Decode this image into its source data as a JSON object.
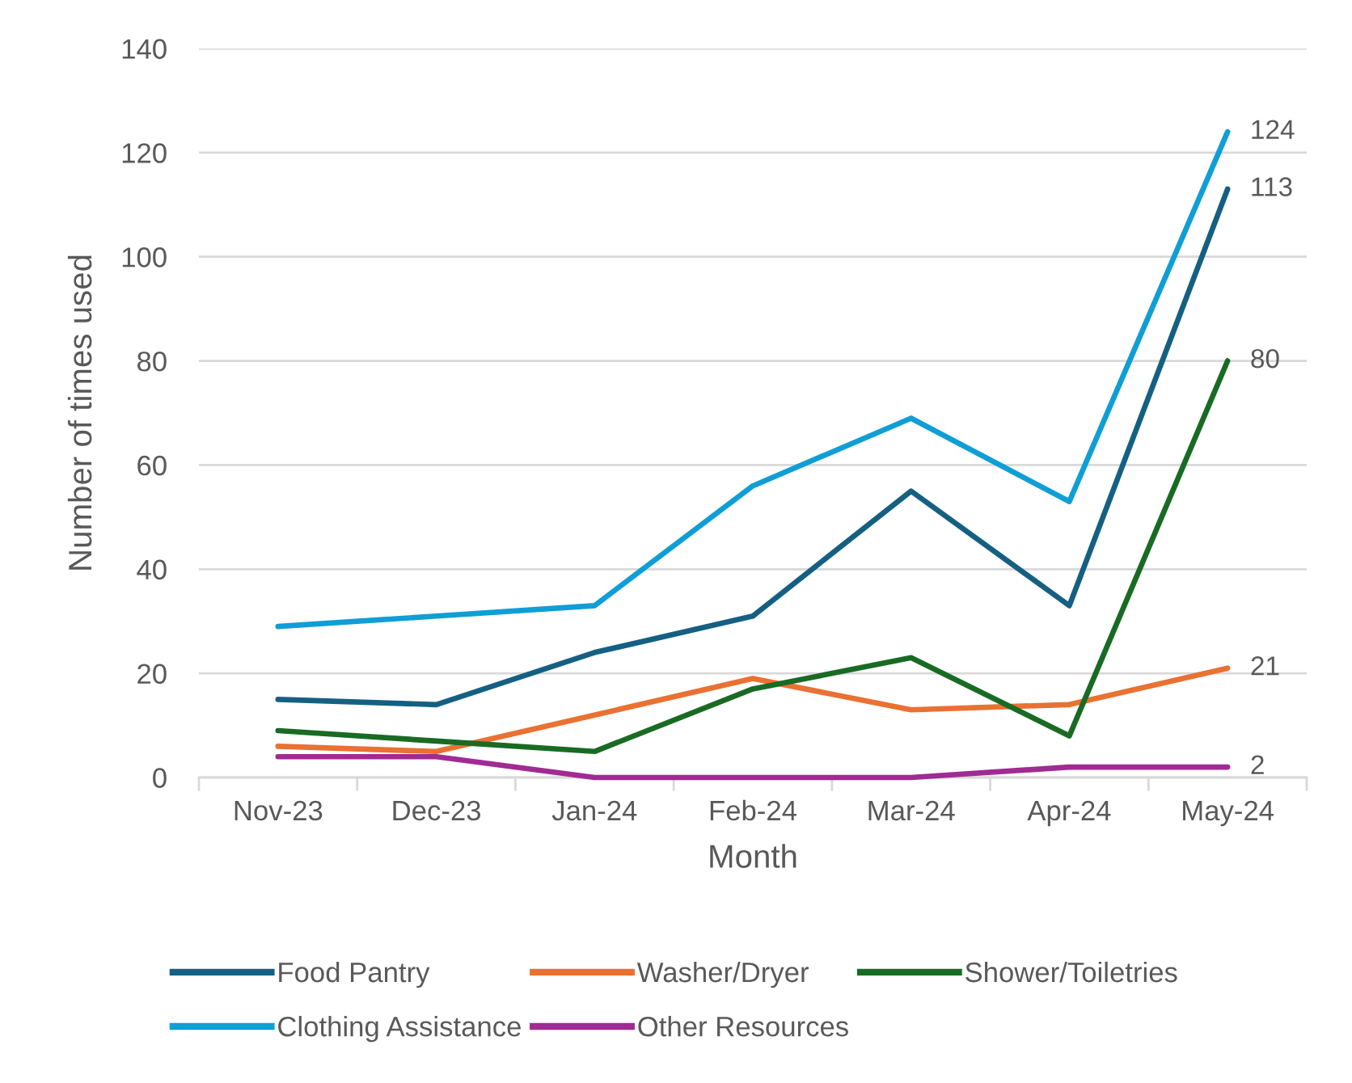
{
  "chart_data": {
    "type": "line",
    "xlabel": "Month",
    "ylabel": "Number of times used",
    "categories": [
      "Nov-23",
      "Dec-23",
      "Jan-24",
      "Feb-24",
      "Mar-24",
      "Apr-24",
      "May-24"
    ],
    "series": [
      {
        "name": "Food Pantry",
        "color": "#156082",
        "values": [
          15,
          14,
          24,
          31,
          55,
          33,
          113
        ],
        "value_labels": [
          null,
          null,
          null,
          null,
          null,
          null,
          "113"
        ]
      },
      {
        "name": "Washer/Dryer",
        "color": "#e97132",
        "values": [
          6,
          5,
          12,
          19,
          13,
          14,
          21
        ],
        "value_labels": [
          null,
          null,
          null,
          null,
          null,
          null,
          "21"
        ]
      },
      {
        "name": "Shower/Toiletries",
        "color": "#196b24",
        "values": [
          9,
          7,
          5,
          17,
          23,
          8,
          80
        ],
        "value_labels": [
          null,
          null,
          null,
          null,
          null,
          null,
          "80"
        ]
      },
      {
        "name": "Clothing Assistance",
        "color": "#0f9ed5",
        "values": [
          29,
          31,
          33,
          56,
          69,
          53,
          124
        ],
        "value_labels": [
          null,
          null,
          null,
          null,
          null,
          null,
          "124"
        ]
      },
      {
        "name": "Other Resources",
        "color": "#a02b93",
        "values": [
          4,
          4,
          0,
          0,
          0,
          2,
          2
        ],
        "value_labels": [
          null,
          null,
          null,
          null,
          null,
          null,
          "2"
        ]
      }
    ],
    "ylim": [
      0,
      140
    ],
    "yticks": [
      0,
      20,
      40,
      60,
      80,
      100,
      120,
      140
    ],
    "grid": "y",
    "legend": "bottom",
    "marker": "none",
    "line_style": "solid"
  }
}
